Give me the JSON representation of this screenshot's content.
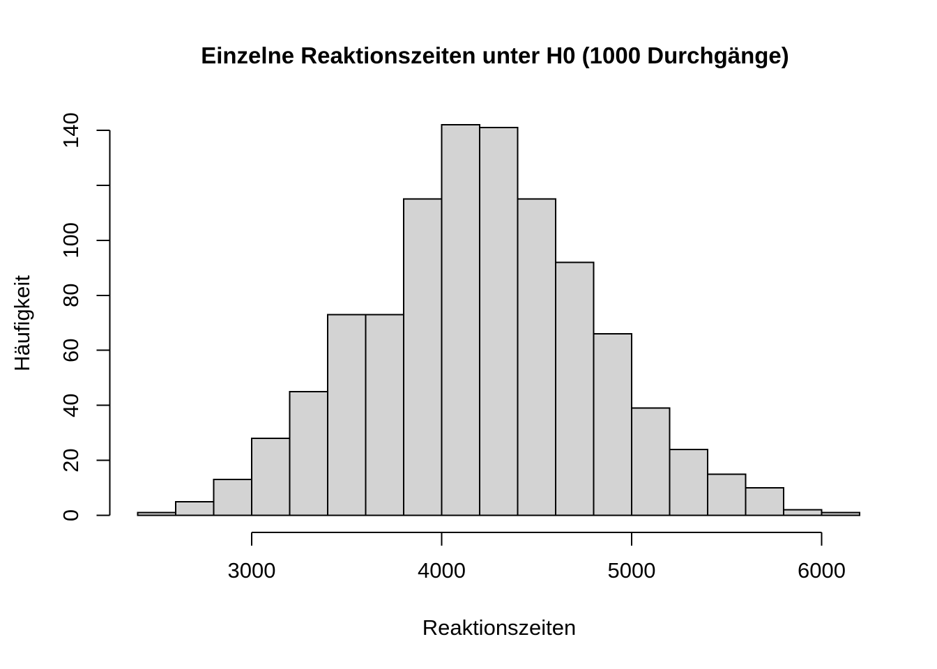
{
  "chart_data": {
    "type": "bar",
    "subtype": "histogram",
    "title": "Einzelne Reaktionszeiten unter H0 (1000 Durchgänge)",
    "xlabel": "Reaktionszeiten",
    "ylabel": "Häufigkeit",
    "total_n": 1000,
    "bin_start": 2400,
    "bin_width": 200,
    "bins": [
      {
        "from": 2400,
        "to": 2600,
        "count": 1
      },
      {
        "from": 2600,
        "to": 2800,
        "count": 5
      },
      {
        "from": 2800,
        "to": 3000,
        "count": 13
      },
      {
        "from": 3000,
        "to": 3200,
        "count": 28
      },
      {
        "from": 3200,
        "to": 3400,
        "count": 45
      },
      {
        "from": 3400,
        "to": 3600,
        "count": 73
      },
      {
        "from": 3600,
        "to": 3800,
        "count": 73
      },
      {
        "from": 3800,
        "to": 4000,
        "count": 115
      },
      {
        "from": 4000,
        "to": 4200,
        "count": 142
      },
      {
        "from": 4200,
        "to": 4400,
        "count": 141
      },
      {
        "from": 4400,
        "to": 4600,
        "count": 115
      },
      {
        "from": 4600,
        "to": 4800,
        "count": 92
      },
      {
        "from": 4800,
        "to": 5000,
        "count": 66
      },
      {
        "from": 5000,
        "to": 5200,
        "count": 39
      },
      {
        "from": 5200,
        "to": 5400,
        "count": 24
      },
      {
        "from": 5400,
        "to": 5600,
        "count": 15
      },
      {
        "from": 5600,
        "to": 5800,
        "count": 10
      },
      {
        "from": 5800,
        "to": 6000,
        "count": 2
      },
      {
        "from": 6000,
        "to": 6200,
        "count": 1
      }
    ],
    "xlim": [
      2400,
      6200
    ],
    "ylim": [
      0,
      140
    ],
    "x_ticks": [
      {
        "value": 3000,
        "label": "3000"
      },
      {
        "value": 4000,
        "label": "4000"
      },
      {
        "value": 5000,
        "label": "5000"
      },
      {
        "value": 6000,
        "label": "6000"
      }
    ],
    "y_ticks": [
      {
        "value": 0,
        "label": "0"
      },
      {
        "value": 20,
        "label": "20"
      },
      {
        "value": 40,
        "label": "40"
      },
      {
        "value": 60,
        "label": "60"
      },
      {
        "value": 80,
        "label": "80"
      },
      {
        "value": 100,
        "label": "100"
      },
      {
        "value": 120,
        "label": ""
      },
      {
        "value": 140,
        "label": "140"
      }
    ],
    "grid": false,
    "legend": null,
    "colors": {
      "bar_fill": "#d3d3d3",
      "bar_border": "#000000",
      "axis": "#000000",
      "text": "#000000",
      "background": "#ffffff"
    }
  }
}
